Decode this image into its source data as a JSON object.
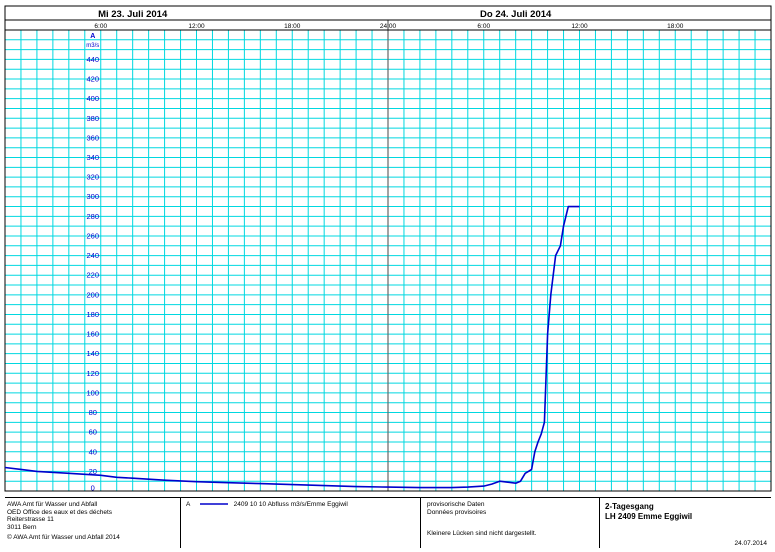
{
  "chart_data": {
    "type": "line",
    "day_labels": [
      "Mi  23. Juli  2014",
      "Do  24. Juli  2014"
    ],
    "time_ticks": [
      {
        "hour": 6,
        "label": "6:00"
      },
      {
        "hour": 12,
        "label": "12:00"
      },
      {
        "hour": 18,
        "label": "18:00"
      },
      {
        "hour": 24,
        "label": "24:00"
      },
      {
        "hour": 30,
        "label": "6:00"
      },
      {
        "hour": 36,
        "label": "12:00"
      },
      {
        "hour": 42,
        "label": "18:00"
      }
    ],
    "xlim": [
      0,
      48
    ],
    "ylim": [
      0,
      470
    ],
    "y_axis_title": "A",
    "y_unit": "m3/s",
    "y_ticks": [
      0,
      20,
      40,
      60,
      80,
      100,
      120,
      140,
      160,
      180,
      200,
      220,
      240,
      260,
      280,
      300,
      320,
      340,
      360,
      380,
      400,
      420,
      440
    ],
    "grid": true,
    "series": [
      {
        "name": "2409 10 10  Abfluss m3/s/Emme Eggiwil",
        "color": "#0000cc",
        "x_hours": [
          0,
          1,
          2,
          4,
          6,
          7,
          8,
          10,
          12,
          14,
          16,
          18,
          20,
          22,
          24,
          26,
          28,
          29,
          30,
          30.5,
          31,
          31.5,
          32,
          32.3,
          32.6,
          32.8,
          33,
          33.2,
          33.4,
          33.6,
          33.8,
          34,
          34.2,
          34.5,
          34.8,
          35,
          35.3,
          35.5,
          35.8,
          36
        ],
        "values": [
          24,
          22,
          20,
          18,
          16,
          14,
          13,
          11,
          9.5,
          8.5,
          7.5,
          6.5,
          5.5,
          4.5,
          4,
          3.5,
          3.5,
          4,
          5,
          7,
          10,
          9,
          8,
          10,
          18,
          20,
          22,
          40,
          50,
          58,
          70,
          160,
          200,
          240,
          250,
          270,
          290,
          290,
          290,
          290
        ]
      }
    ]
  },
  "footer": {
    "org_lines": [
      "AWA Amt für Wasser und Abfall",
      "OED Office des eaux et des déchets",
      "Reiterstrasse 11",
      "3011 Bern",
      "© AWA Amt für Wasser und Abfall 2014"
    ],
    "legend_key": "A",
    "legend_text": "2409 10 10  Abfluss m3/s/Emme Eggiwil",
    "provisional_lines": [
      "provisorische Daten",
      "Données provisoires"
    ],
    "gaps_note": "Kleinere Lücken sind nicht dargestellt.",
    "title_lines": [
      "2-Tagesgang",
      "LH 2409 Emme Eggiwil"
    ],
    "date": "24.07.2014"
  }
}
